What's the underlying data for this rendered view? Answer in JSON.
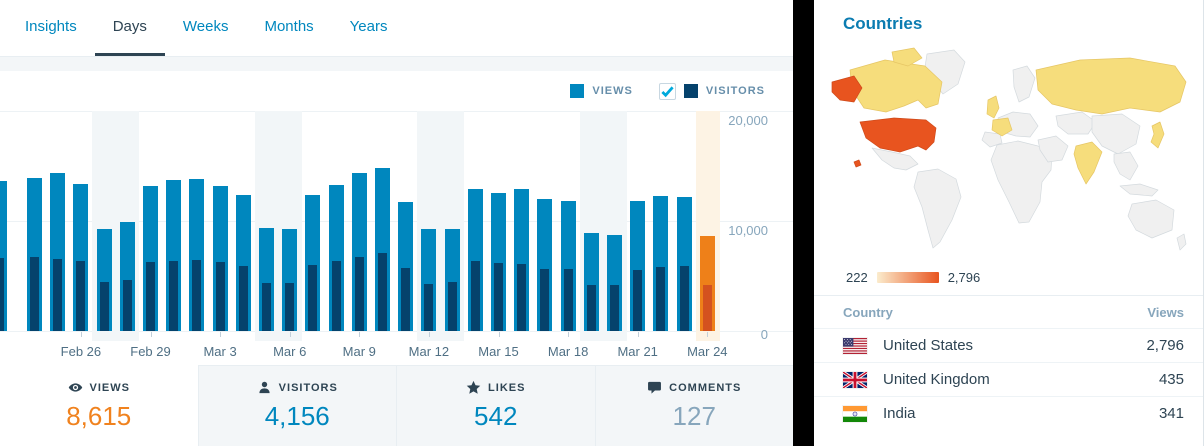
{
  "tabs": {
    "items": [
      {
        "label": "Insights",
        "selected": false
      },
      {
        "label": "Days",
        "selected": true
      },
      {
        "label": "Weeks",
        "selected": false
      },
      {
        "label": "Months",
        "selected": false
      },
      {
        "label": "Years",
        "selected": false
      }
    ]
  },
  "legend": {
    "views_label": "VIEWS",
    "visitors_label": "VISITORS",
    "views_color": "#0087be",
    "visitors_color": "#05426c",
    "visitors_checkbox_checked": true,
    "checkbox_check_color": "#00aadc"
  },
  "chart_data": {
    "type": "bar",
    "title": "Daily views and visitors",
    "ylim": [
      0,
      20000
    ],
    "yticks": [
      {
        "value": 20000,
        "label": "20,000"
      },
      {
        "value": 10000,
        "label": "10,000"
      },
      {
        "value": 0,
        "label": "0"
      }
    ],
    "series": [
      {
        "name": "Views",
        "color": "#0087be"
      },
      {
        "name": "Visitors",
        "color": "#05426c"
      }
    ],
    "today_colors": {
      "views": "#ee8019",
      "visitors": "#d4521f",
      "column": "#fdf3e4"
    },
    "weekend_column_color": "#f2f6f8",
    "grid": true,
    "legend_position": "top-right",
    "bars": [
      {
        "date": "Feb 23",
        "label": "",
        "views": 13600,
        "visitors": 6600,
        "weekend": false,
        "today": false,
        "clipped": true
      },
      {
        "date": "Feb 24",
        "label": "",
        "views": 13900,
        "visitors": 6750,
        "weekend": false,
        "today": false,
        "clipped": false
      },
      {
        "date": "Feb 25",
        "label": "",
        "views": 14400,
        "visitors": 6580,
        "weekend": false,
        "today": false,
        "clipped": false
      },
      {
        "date": "Feb 26",
        "label": "Feb 26",
        "views": 13400,
        "visitors": 6360,
        "weekend": false,
        "today": false,
        "clipped": false
      },
      {
        "date": "Feb 27",
        "label": "",
        "views": 9270,
        "visitors": 4480,
        "weekend": true,
        "today": false,
        "clipped": false
      },
      {
        "date": "Feb 28",
        "label": "",
        "views": 9950,
        "visitors": 4640,
        "weekend": true,
        "today": false,
        "clipped": false
      },
      {
        "date": "Feb 29",
        "label": "Feb 29",
        "views": 13200,
        "visitors": 6300,
        "weekend": false,
        "today": false,
        "clipped": false
      },
      {
        "date": "Mar 1",
        "label": "",
        "views": 13700,
        "visitors": 6360,
        "weekend": false,
        "today": false,
        "clipped": false
      },
      {
        "date": "Mar 2",
        "label": "",
        "views": 13800,
        "visitors": 6450,
        "weekend": false,
        "today": false,
        "clipped": false
      },
      {
        "date": "Mar 3",
        "label": "Mar 3",
        "views": 13200,
        "visitors": 6300,
        "weekend": false,
        "today": false,
        "clipped": false
      },
      {
        "date": "Mar 4",
        "label": "",
        "views": 12400,
        "visitors": 5910,
        "weekend": false,
        "today": false,
        "clipped": false
      },
      {
        "date": "Mar 5",
        "label": "",
        "views": 9390,
        "visitors": 4390,
        "weekend": true,
        "today": false,
        "clipped": false
      },
      {
        "date": "Mar 6",
        "label": "Mar 6",
        "views": 9240,
        "visitors": 4330,
        "weekend": true,
        "today": false,
        "clipped": false
      },
      {
        "date": "Mar 7",
        "label": "",
        "views": 12400,
        "visitors": 6000,
        "weekend": false,
        "today": false,
        "clipped": false
      },
      {
        "date": "Mar 8",
        "label": "",
        "views": 13270,
        "visitors": 6360,
        "weekend": false,
        "today": false,
        "clipped": false
      },
      {
        "date": "Mar 9",
        "label": "Mar 9",
        "views": 14360,
        "visitors": 6750,
        "weekend": false,
        "today": false,
        "clipped": false
      },
      {
        "date": "Mar 10",
        "label": "",
        "views": 14790,
        "visitors": 7120,
        "weekend": false,
        "today": false,
        "clipped": false
      },
      {
        "date": "Mar 11",
        "label": "",
        "views": 11730,
        "visitors": 5700,
        "weekend": false,
        "today": false,
        "clipped": false
      },
      {
        "date": "Mar 12",
        "label": "Mar 12",
        "views": 9240,
        "visitors": 4300,
        "weekend": true,
        "today": false,
        "clipped": false
      },
      {
        "date": "Mar 13",
        "label": "",
        "views": 9240,
        "visitors": 4450,
        "weekend": true,
        "today": false,
        "clipped": false
      },
      {
        "date": "Mar 14",
        "label": "",
        "views": 12940,
        "visitors": 6360,
        "weekend": false,
        "today": false,
        "clipped": false
      },
      {
        "date": "Mar 15",
        "label": "Mar 15",
        "views": 12570,
        "visitors": 6210,
        "weekend": false,
        "today": false,
        "clipped": false
      },
      {
        "date": "Mar 16",
        "label": "",
        "views": 12940,
        "visitors": 6120,
        "weekend": false,
        "today": false,
        "clipped": false
      },
      {
        "date": "Mar 17",
        "label": "",
        "views": 11970,
        "visitors": 5610,
        "weekend": false,
        "today": false,
        "clipped": false
      },
      {
        "date": "Mar 18",
        "label": "Mar 18",
        "views": 11790,
        "visitors": 5610,
        "weekend": false,
        "today": false,
        "clipped": false
      },
      {
        "date": "Mar 19",
        "label": "",
        "views": 8940,
        "visitors": 4180,
        "weekend": true,
        "today": false,
        "clipped": false
      },
      {
        "date": "Mar 20",
        "label": "",
        "views": 8730,
        "visitors": 4180,
        "weekend": true,
        "today": false,
        "clipped": false
      },
      {
        "date": "Mar 21",
        "label": "Mar 21",
        "views": 11790,
        "visitors": 5520,
        "weekend": false,
        "today": false,
        "clipped": false
      },
      {
        "date": "Mar 22",
        "label": "",
        "views": 12240,
        "visitors": 5820,
        "weekend": false,
        "today": false,
        "clipped": false
      },
      {
        "date": "Mar 23",
        "label": "",
        "views": 12210,
        "visitors": 5910,
        "weekend": false,
        "today": false,
        "clipped": false
      },
      {
        "date": "Mar 24",
        "label": "Mar 24",
        "views": 8615,
        "visitors": 4156,
        "weekend": false,
        "today": true,
        "clipped": false
      }
    ]
  },
  "stats": {
    "items": [
      {
        "label": "VIEWS",
        "value": "8,615",
        "icon": "eye",
        "value_color": "#f0821e",
        "selected": true
      },
      {
        "label": "VISITORS",
        "value": "4,156",
        "icon": "person",
        "value_color": "#0087be",
        "selected": false
      },
      {
        "label": "LIKES",
        "value": "542",
        "icon": "star",
        "value_color": "#0087be",
        "selected": false
      },
      {
        "label": "COMMENTS",
        "value": "127",
        "icon": "comment",
        "value_color": "#87a6bc",
        "selected": false
      }
    ]
  },
  "countries": {
    "title": "Countries",
    "map_legend": {
      "min": "222",
      "max": "2,796"
    },
    "map_colors": {
      "high": "#e8541f",
      "mid": "#f6dd7c",
      "none": "#f0f0f0",
      "gradient_start": "#fbeccd",
      "gradient_end": "#e8541f"
    },
    "map_highlights": {
      "high": [
        "United States"
      ],
      "mid": [
        "Canada",
        "Russia",
        "United Kingdom",
        "France",
        "India",
        "Japan"
      ]
    },
    "table": {
      "headers": [
        "Country",
        "Views"
      ],
      "rows": [
        {
          "country": "United States",
          "views": "2,796",
          "flag": "us"
        },
        {
          "country": "United Kingdom",
          "views": "435",
          "flag": "gb"
        },
        {
          "country": "India",
          "views": "341",
          "flag": "in"
        }
      ]
    }
  }
}
